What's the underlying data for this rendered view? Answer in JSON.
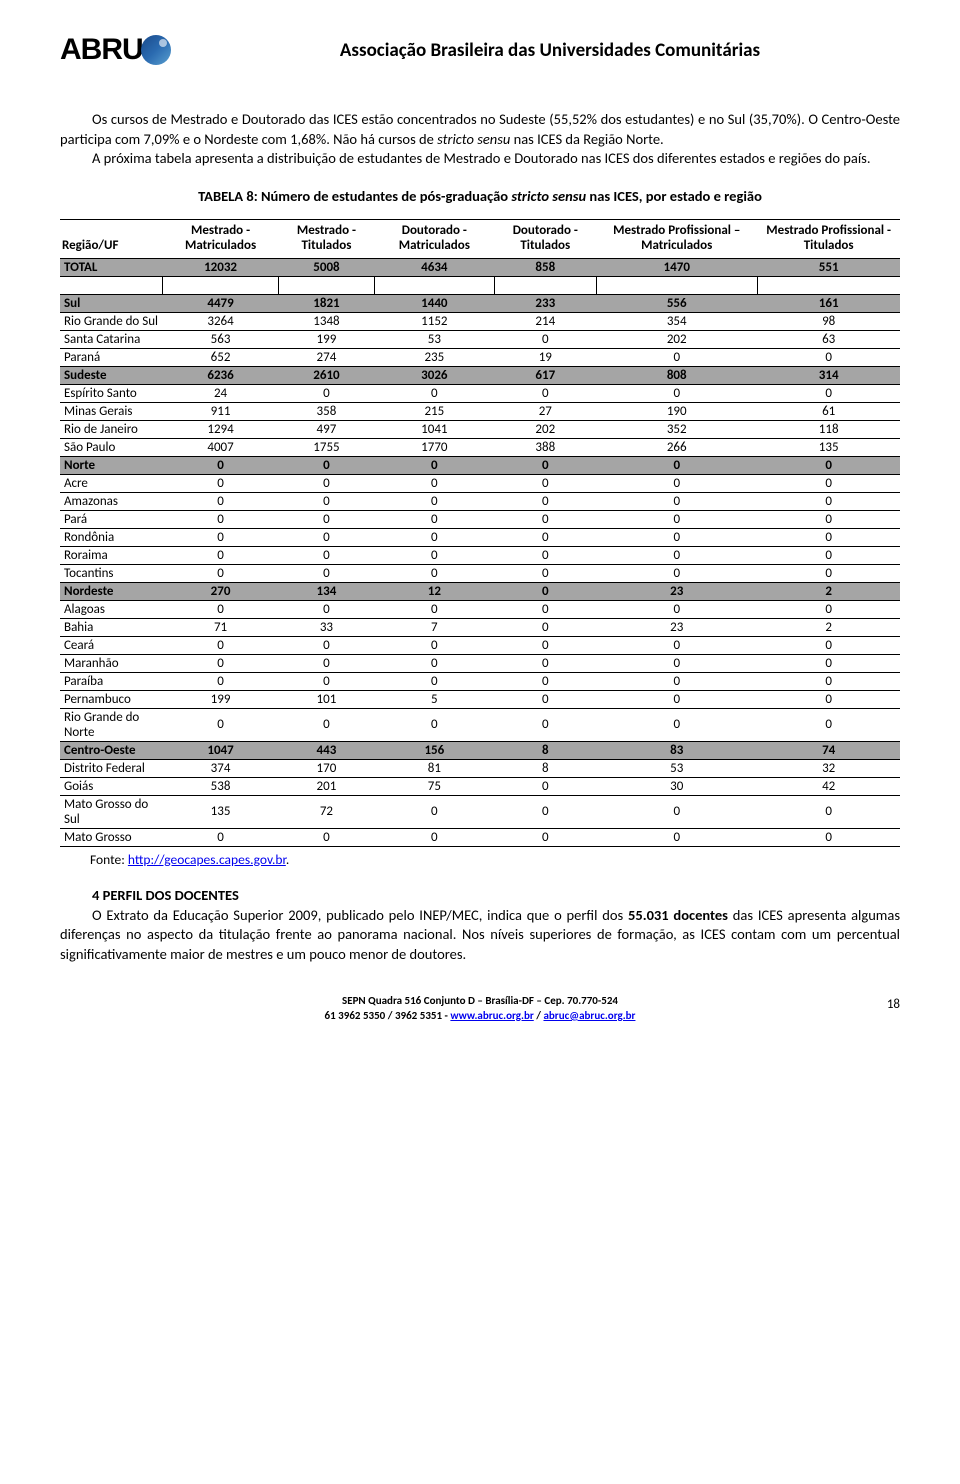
{
  "header": {
    "logo_text": "ABRU",
    "assoc_title": "Associação Brasileira das Universidades Comunitárias"
  },
  "intro": {
    "p1a": "Os cursos de Mestrado e Doutorado das ICES estão concentrados no Sudeste (55,52% dos estudantes) e no Sul (35,70%). O Centro-Oeste participa com 7,09% e o Nordeste com 1,68%. Não há cursos de ",
    "p1_italic": "stricto sensu",
    "p1b": " nas ICES da Região Norte.",
    "p2": "A próxima tabela apresenta a distribuição de estudantes de Mestrado e Doutorado nas ICES dos diferentes estados e regiões do país."
  },
  "table": {
    "caption_a": "TABELA 8: Número de estudantes de pós-graduação ",
    "caption_italic": "stricto sensu",
    "caption_b": " nas ICES, por estado e região",
    "columns": [
      "Região/UF",
      "Mestrado - Matriculados",
      "Mestrado - Titulados",
      "Doutorado - Matriculados",
      "Doutorado - Titulados",
      "Mestrado Profissional – Matriculados",
      "Mestrado Profissional - Titulados"
    ],
    "total_row": [
      "TOTAL",
      "12032",
      "5008",
      "4634",
      "858",
      "1470",
      "551"
    ],
    "rows": [
      {
        "type": "region",
        "cells": [
          "Sul",
          "4479",
          "1821",
          "1440",
          "233",
          "556",
          "161"
        ]
      },
      {
        "type": "state",
        "cells": [
          "Rio Grande do Sul",
          "3264",
          "1348",
          "1152",
          "214",
          "354",
          "98"
        ]
      },
      {
        "type": "state",
        "cells": [
          "Santa Catarina",
          "563",
          "199",
          "53",
          "0",
          "202",
          "63"
        ]
      },
      {
        "type": "state",
        "cells": [
          "Paraná",
          "652",
          "274",
          "235",
          "19",
          "0",
          "0"
        ]
      },
      {
        "type": "region",
        "cells": [
          "Sudeste",
          "6236",
          "2610",
          "3026",
          "617",
          "808",
          "314"
        ]
      },
      {
        "type": "state",
        "cells": [
          "Espírito Santo",
          "24",
          "0",
          "0",
          "0",
          "0",
          "0"
        ]
      },
      {
        "type": "state",
        "cells": [
          "Minas Gerais",
          "911",
          "358",
          "215",
          "27",
          "190",
          "61"
        ]
      },
      {
        "type": "state",
        "cells": [
          "Rio de Janeiro",
          "1294",
          "497",
          "1041",
          "202",
          "352",
          "118"
        ]
      },
      {
        "type": "state",
        "cells": [
          "São Paulo",
          "4007",
          "1755",
          "1770",
          "388",
          "266",
          "135"
        ]
      },
      {
        "type": "region",
        "cells": [
          "Norte",
          "0",
          "0",
          "0",
          "0",
          "0",
          "0"
        ]
      },
      {
        "type": "state",
        "cells": [
          "Acre",
          "0",
          "0",
          "0",
          "0",
          "0",
          "0"
        ]
      },
      {
        "type": "state",
        "cells": [
          "Amazonas",
          "0",
          "0",
          "0",
          "0",
          "0",
          "0"
        ]
      },
      {
        "type": "state",
        "cells": [
          "Pará",
          "0",
          "0",
          "0",
          "0",
          "0",
          "0"
        ]
      },
      {
        "type": "state",
        "cells": [
          "Rondônia",
          "0",
          "0",
          "0",
          "0",
          "0",
          "0"
        ]
      },
      {
        "type": "state",
        "cells": [
          "Roraima",
          "0",
          "0",
          "0",
          "0",
          "0",
          "0"
        ]
      },
      {
        "type": "state",
        "cells": [
          "Tocantins",
          "0",
          "0",
          "0",
          "0",
          "0",
          "0"
        ]
      },
      {
        "type": "region",
        "cells": [
          "Nordeste",
          "270",
          "134",
          "12",
          "0",
          "23",
          "2"
        ]
      },
      {
        "type": "state",
        "cells": [
          "Alagoas",
          "0",
          "0",
          "0",
          "0",
          "0",
          "0"
        ]
      },
      {
        "type": "state",
        "cells": [
          "Bahia",
          "71",
          "33",
          "7",
          "0",
          "23",
          "2"
        ]
      },
      {
        "type": "state",
        "cells": [
          "Ceará",
          "0",
          "0",
          "0",
          "0",
          "0",
          "0"
        ]
      },
      {
        "type": "state",
        "cells": [
          "Maranhão",
          "0",
          "0",
          "0",
          "0",
          "0",
          "0"
        ]
      },
      {
        "type": "state",
        "cells": [
          "Paraíba",
          "0",
          "0",
          "0",
          "0",
          "0",
          "0"
        ]
      },
      {
        "type": "state",
        "cells": [
          "Pernambuco",
          "199",
          "101",
          "5",
          "0",
          "0",
          "0"
        ]
      },
      {
        "type": "state",
        "cells": [
          "Rio Grande do Norte",
          "0",
          "0",
          "0",
          "0",
          "0",
          "0"
        ]
      },
      {
        "type": "region",
        "cells": [
          "Centro-Oeste",
          "1047",
          "443",
          "156",
          "8",
          "83",
          "74"
        ]
      },
      {
        "type": "state",
        "cells": [
          "Distrito Federal",
          "374",
          "170",
          "81",
          "8",
          "53",
          "32"
        ]
      },
      {
        "type": "state",
        "cells": [
          "Goiás",
          "538",
          "201",
          "75",
          "0",
          "30",
          "42"
        ]
      },
      {
        "type": "state",
        "cells": [
          "Mato Grosso do Sul",
          "135",
          "72",
          "0",
          "0",
          "0",
          "0"
        ]
      },
      {
        "type": "state",
        "cells": [
          "Mato Grosso",
          "0",
          "0",
          "0",
          "0",
          "0",
          "0"
        ]
      }
    ],
    "fonte_label": "Fonte: ",
    "fonte_url": "http://geocapes.capes.gov.br",
    "fonte_dot": "."
  },
  "section4": {
    "title": "4 PERFIL DOS DOCENTES",
    "p_a": "O Extrato da Educação Superior 2009, publicado pelo INEP/MEC, indica que o perfil dos ",
    "p_bold": "55.031 docentes",
    "p_b": " das ICES apresenta algumas diferenças no aspecto da titulação frente ao panorama nacional. Nos níveis superiores de formação, as ICES contam com um percentual significativamente maior de mestres e um pouco menor de doutores."
  },
  "footer": {
    "line1": "SEPN Quadra 516 Conjunto D – Brasília-DF – Cep. 70.770-524",
    "line2a": "61 3962 5350 / 3962 5351 - ",
    "link1": "www.abruc.org.br",
    "line2b": " / ",
    "link2": "abruc@abruc.org.br",
    "page": "18"
  }
}
